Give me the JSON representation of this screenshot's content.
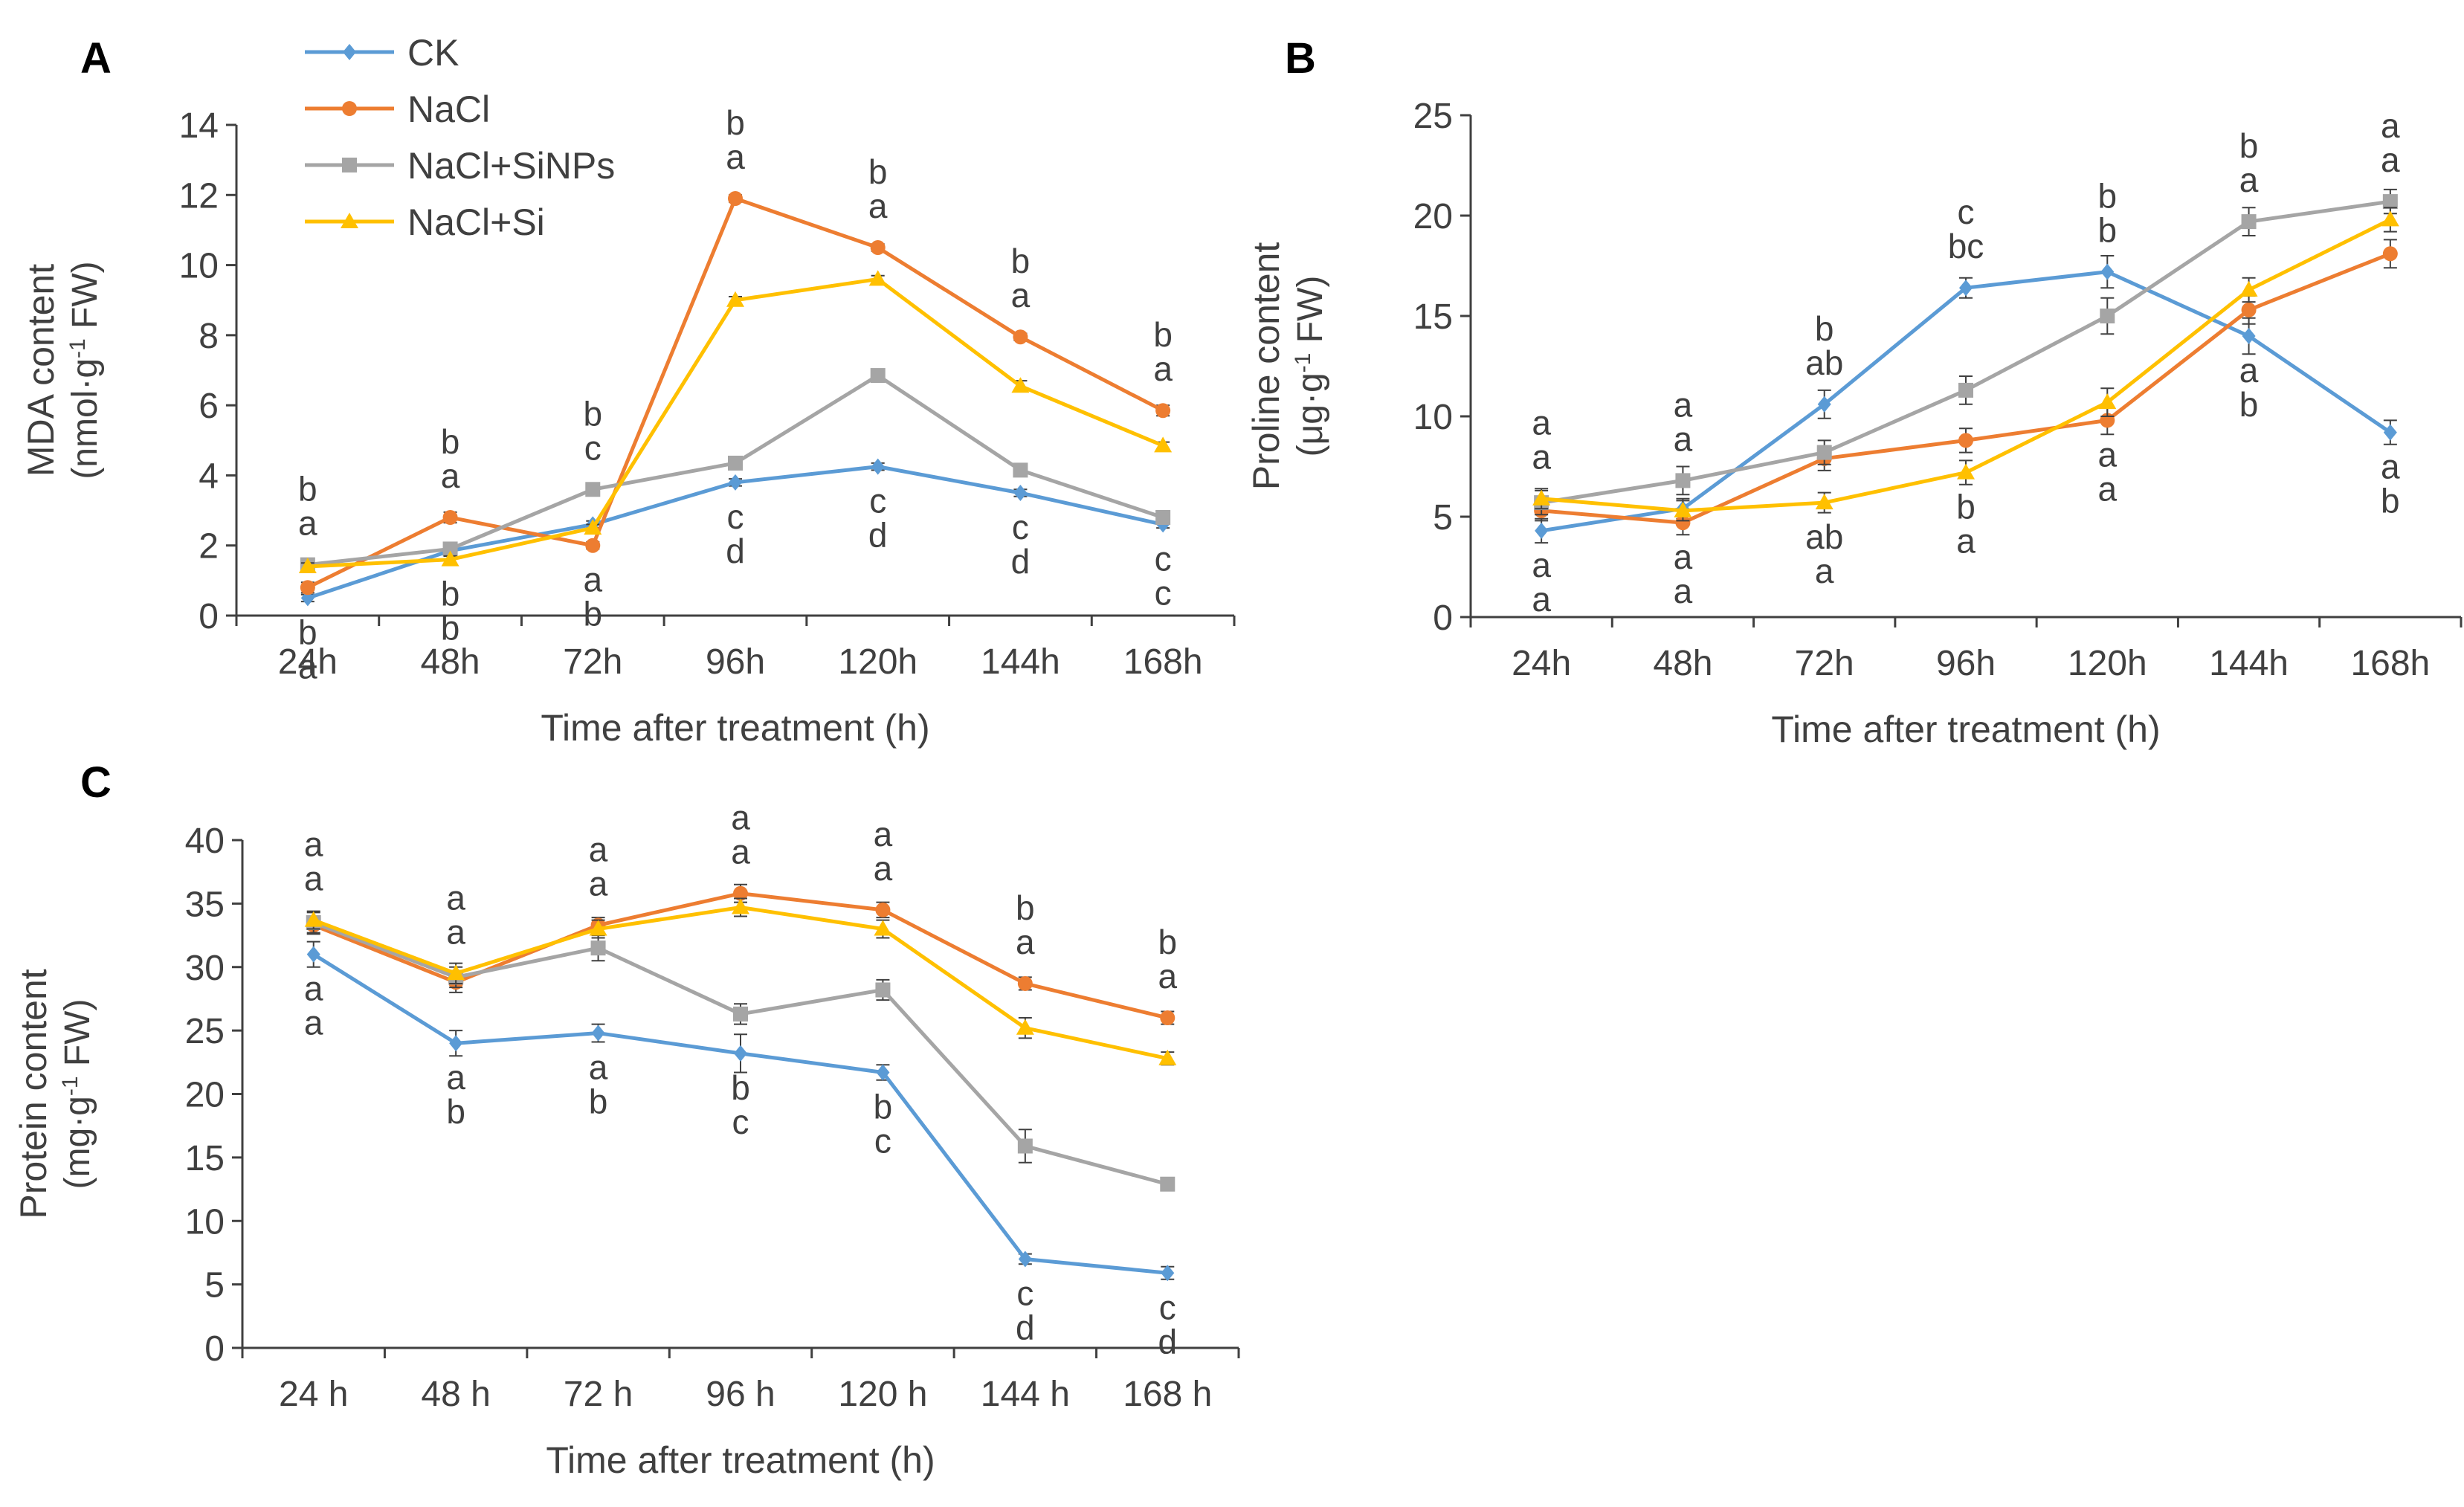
{
  "legend": {
    "entries": [
      {
        "label": "CK",
        "color": "#5B9BD5",
        "marker": "diamond"
      },
      {
        "label": "NaCl",
        "color": "#ED7D31",
        "marker": "circle"
      },
      {
        "label": "NaCl+SiNPs",
        "color": "#A5A5A5",
        "marker": "square"
      },
      {
        "label": "NaCl+Si",
        "color": "#FFC000",
        "marker": "triangle"
      }
    ]
  },
  "chart_data": [
    {
      "panel": "A",
      "type": "line",
      "categories": [
        "24h",
        "48h",
        "72h",
        "96h",
        "120h",
        "144h",
        "168h"
      ],
      "ylabel_line1": "MDA content",
      "ylabel_line2_pre": "(nmol·g",
      "ylabel_sup": "-1",
      "ylabel_line2_post": " FW)",
      "xlabel": "Time after treatment (h)",
      "ylim": [
        0,
        14
      ],
      "yticks": [
        0,
        2,
        4,
        6,
        8,
        10,
        12,
        14
      ],
      "series": [
        {
          "name": "CK",
          "values": [
            0.5,
            1.85,
            2.6,
            3.8,
            4.25,
            3.5,
            2.6
          ],
          "errors": [
            0.1,
            0.15,
            0.1,
            0.1,
            0.1,
            0.1,
            0.1
          ]
        },
        {
          "name": "NaCl",
          "values": [
            0.8,
            2.8,
            2.0,
            11.9,
            10.5,
            7.95,
            5.85
          ],
          "errors": [
            0.15,
            0.15,
            0.1,
            0.1,
            0.1,
            0.1,
            0.15
          ]
        },
        {
          "name": "NaCl+SiNPs",
          "values": [
            1.45,
            1.9,
            3.6,
            4.35,
            6.85,
            4.15,
            2.8
          ],
          "errors": [
            0.15,
            0.1,
            0.1,
            0.15,
            0.15,
            0.1,
            0.1
          ]
        },
        {
          "name": "NaCl+Si",
          "values": [
            1.4,
            1.6,
            2.5,
            9.0,
            9.6,
            6.55,
            4.85
          ],
          "errors": [
            0.1,
            0.1,
            0.1,
            0.1,
            0.1,
            0.15,
            0.1
          ]
        }
      ],
      "letters": [
        [
          "a",
          "a",
          "b",
          "b"
        ],
        [
          "b",
          "a",
          "b",
          "b"
        ],
        [
          "b",
          "c",
          "a",
          "b"
        ],
        [
          "d",
          "a",
          "c",
          "b"
        ],
        [
          "d",
          "a",
          "c",
          "b"
        ],
        [
          "d",
          "a",
          "c",
          "b"
        ],
        [
          "c",
          "a",
          "c",
          "b"
        ]
      ]
    },
    {
      "panel": "B",
      "type": "line",
      "categories": [
        "24h",
        "48h",
        "72h",
        "96h",
        "120h",
        "144h",
        "168h"
      ],
      "ylabel_line1": "Proline content",
      "ylabel_line2_pre": "(μg·g",
      "ylabel_sup": "-1",
      "ylabel_line2_post": " FW)",
      "xlabel": "Time after treatment (h)",
      "ylim": [
        0,
        25
      ],
      "yticks": [
        0,
        5,
        10,
        15,
        20,
        25
      ],
      "series": [
        {
          "name": "CK",
          "values": [
            4.3,
            5.4,
            10.6,
            16.4,
            17.2,
            14.0,
            9.2
          ],
          "errors": [
            0.6,
            0.5,
            0.7,
            0.5,
            0.8,
            0.9,
            0.6
          ]
        },
        {
          "name": "NaCl",
          "values": [
            5.3,
            4.7,
            7.9,
            8.8,
            9.8,
            15.3,
            18.1
          ],
          "errors": [
            0.5,
            0.6,
            0.6,
            0.6,
            0.7,
            0.7,
            0.7
          ]
        },
        {
          "name": "NaCl+SiNPs",
          "values": [
            5.7,
            6.8,
            8.2,
            11.3,
            15.0,
            19.7,
            20.7
          ],
          "errors": [
            0.6,
            0.7,
            0.6,
            0.7,
            0.9,
            0.7,
            0.6
          ]
        },
        {
          "name": "NaCl+Si",
          "values": [
            5.9,
            5.3,
            5.7,
            7.2,
            10.7,
            16.3,
            19.8
          ],
          "errors": [
            0.5,
            0.5,
            0.5,
            0.6,
            0.7,
            0.6,
            0.6
          ]
        }
      ],
      "letters": [
        [
          "a",
          "a",
          "a",
          "a"
        ],
        [
          "a",
          "a",
          "a",
          "a"
        ],
        [
          "a",
          "ab",
          "ab",
          "b"
        ],
        [
          "a",
          "bc",
          "b",
          "c"
        ],
        [
          "a",
          "b",
          "a",
          "b"
        ],
        [
          "b",
          "a",
          "a",
          "b"
        ],
        [
          "b",
          "a",
          "a",
          "a"
        ]
      ]
    },
    {
      "panel": "C",
      "type": "line",
      "categories": [
        "24 h",
        "48 h",
        "72 h",
        "96 h",
        "120 h",
        "144 h",
        "168 h"
      ],
      "ylabel_line1": "Protein content",
      "ylabel_line2_pre": "(mg·g",
      "ylabel_sup": "-1",
      "ylabel_line2_post": " FW)",
      "xlabel": "Time after treatment (h)",
      "ylim": [
        0,
        40
      ],
      "yticks": [
        0,
        5,
        10,
        15,
        20,
        25,
        30,
        35,
        40
      ],
      "series": [
        {
          "name": "CK",
          "values": [
            31.0,
            24.0,
            24.8,
            23.2,
            21.7,
            7.0,
            5.9
          ],
          "errors": [
            1.0,
            1.0,
            0.7,
            1.5,
            0.6,
            0.4,
            0.5
          ]
        },
        {
          "name": "NaCl",
          "values": [
            33.3,
            28.8,
            33.3,
            35.8,
            34.5,
            28.7,
            26.0
          ],
          "errors": [
            0.7,
            0.8,
            0.6,
            0.7,
            0.6,
            0.5,
            0.5
          ]
        },
        {
          "name": "NaCl+SiNPs",
          "values": [
            33.5,
            29.2,
            31.5,
            26.3,
            28.2,
            15.9,
            12.9
          ],
          "errors": [
            0.8,
            0.8,
            1.0,
            0.8,
            0.8,
            1.3,
            0.5
          ]
        },
        {
          "name": "NaCl+Si",
          "values": [
            33.7,
            29.5,
            33.0,
            34.7,
            33.0,
            25.2,
            22.8
          ],
          "errors": [
            0.7,
            0.8,
            0.7,
            0.7,
            0.7,
            0.8,
            0.5
          ]
        }
      ],
      "letters": [
        [
          "a",
          "a",
          "a",
          "a"
        ],
        [
          "b",
          "a",
          "a",
          "a"
        ],
        [
          "b",
          "a",
          "a",
          "a"
        ],
        [
          "c",
          "a",
          "b",
          "a"
        ],
        [
          "c",
          "a",
          "b",
          "a"
        ],
        [
          "d",
          "a",
          "c",
          "b"
        ],
        [
          "d",
          "a",
          "c",
          "b"
        ]
      ]
    }
  ]
}
